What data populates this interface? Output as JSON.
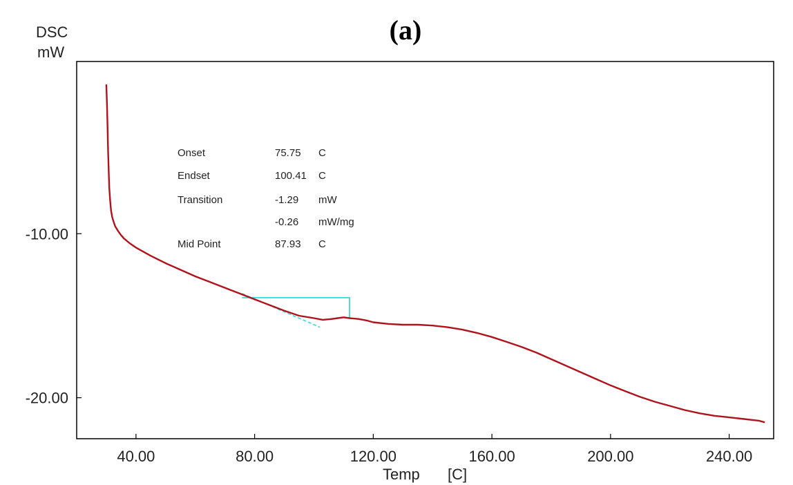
{
  "panel_label": "(a)",
  "annotations": [
    {
      "name": "Onset",
      "value": "75.75",
      "unit": "C"
    },
    {
      "name": "Endset",
      "value": "100.41",
      "unit": "C"
    },
    {
      "name": "Transition",
      "value": "-1.29",
      "unit": "mW"
    },
    {
      "name": "",
      "value": "-0.26",
      "unit": "mW/mg"
    },
    {
      "name": "Mid Point",
      "value": "87.93",
      "unit": "C"
    }
  ],
  "colors": {
    "curve": "#b0121b",
    "analysis": "#3fd6d6",
    "axes": "#000000"
  },
  "chart_data": {
    "type": "line",
    "title": "(a)",
    "ylabel": "DSC mW",
    "ylabel_lines": [
      "DSC",
      "mW"
    ],
    "xlabel": "Temp [C]",
    "xlabel_parts": [
      "Temp",
      "[C]"
    ],
    "xlim": [
      20,
      255
    ],
    "ylim": [
      -22.5,
      0.5
    ],
    "xticks": [
      40,
      80,
      120,
      160,
      200,
      240
    ],
    "xtick_labels": [
      "40.00",
      "80.00",
      "120.00",
      "160.00",
      "200.00",
      "240.00"
    ],
    "yticks": [
      -10,
      -20
    ],
    "ytick_labels": [
      "-10.00",
      "-20.00"
    ],
    "grid": false,
    "series": [
      {
        "x": [
          30.0,
          30.2,
          30.4,
          30.6,
          30.8,
          31.0,
          31.3,
          31.6,
          32.0,
          32.5,
          33.0,
          34.0,
          35.0,
          36.0,
          38.0,
          40.0,
          45.0,
          50.0,
          55.0,
          60.0,
          65.0,
          70.0,
          75.0,
          80.0,
          85.0,
          90.0,
          95.0,
          100.0,
          103.0,
          106.0,
          108.0,
          110.0,
          112.0,
          115.0,
          118.0,
          120.0,
          125.0,
          130.0,
          135.0,
          140.0,
          145.0,
          150.0,
          155.0,
          160.0,
          165.0,
          170.0,
          175.0,
          180.0,
          185.0,
          190.0,
          195.0,
          200.0,
          205.0,
          210.0,
          215.0,
          220.0,
          225.0,
          230.0,
          235.0,
          240.0,
          245.0,
          250.0,
          252.0
        ],
        "y": [
          -0.9,
          -2.0,
          -3.5,
          -5.0,
          -6.2,
          -7.2,
          -8.0,
          -8.6,
          -9.0,
          -9.3,
          -9.55,
          -9.85,
          -10.1,
          -10.3,
          -10.6,
          -10.85,
          -11.35,
          -11.8,
          -12.2,
          -12.6,
          -12.95,
          -13.3,
          -13.65,
          -14.0,
          -14.35,
          -14.7,
          -15.0,
          -15.15,
          -15.25,
          -15.2,
          -15.15,
          -15.1,
          -15.15,
          -15.2,
          -15.3,
          -15.4,
          -15.5,
          -15.55,
          -15.55,
          -15.6,
          -15.7,
          -15.85,
          -16.05,
          -16.3,
          -16.6,
          -16.9,
          -17.25,
          -17.65,
          -18.05,
          -18.45,
          -18.85,
          -19.25,
          -19.6,
          -19.95,
          -20.25,
          -20.5,
          -20.75,
          -20.95,
          -21.1,
          -21.2,
          -21.3,
          -21.4,
          -21.5
        ]
      }
    ],
    "analysis_marks": {
      "extrapolated_baseline": {
        "x": [
          75.75,
          102.0
        ],
        "y": [
          -13.65,
          -15.7
        ]
      },
      "step_bracket": {
        "x": [
          75.75,
          112.0,
          112.0
        ],
        "y": [
          -13.9,
          -13.9,
          -15.2
        ]
      }
    }
  }
}
